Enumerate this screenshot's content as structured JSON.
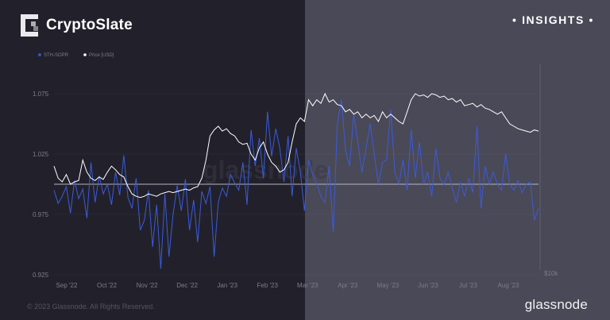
{
  "header": {
    "brand": "CryptoSlate",
    "badge": "INSIGHTS"
  },
  "footer": {
    "copyright": "© 2023 Glassnode. All Rights Reserved.",
    "brand": "glassnode"
  },
  "watermark": "glassnode",
  "colors": {
    "sopr": "#3b5bdb",
    "price": "#ffffff",
    "baseline": "#b5b5c0"
  },
  "chart_data": {
    "type": "line",
    "legend": [
      "STH-SOPR",
      "Price [USD]"
    ],
    "legend_position": "top-left",
    "y_ticks": [
      "1.075",
      "1.025",
      "0.975",
      "0.925"
    ],
    "y_tick_values": [
      1.075,
      1.025,
      0.975,
      0.925
    ],
    "ylim": [
      0.925,
      1.1
    ],
    "y_right_label": "$10k",
    "baseline": 1.0,
    "x_ticks": [
      "Sep '22",
      "Oct '22",
      "Nov '22",
      "Dec '22",
      "Jan '23",
      "Feb '23",
      "Mar '23",
      "Apr '23",
      "May '23",
      "Jun '23",
      "Jul '23",
      "Aug '23"
    ],
    "series": [
      {
        "name": "STH-SOPR",
        "values": [
          0.995,
          0.984,
          0.99,
          0.998,
          0.976,
          1.003,
          0.988,
          0.996,
          0.972,
          1.018,
          0.985,
          1.007,
          0.992,
          1.0,
          0.983,
          1.01,
          0.991,
          1.024,
          0.989,
          0.98,
          1.005,
          0.962,
          0.97,
          0.995,
          0.948,
          0.983,
          0.93,
          0.992,
          0.94,
          0.975,
          0.999,
          0.978,
          1.004,
          0.962,
          0.987,
          0.952,
          0.994,
          0.984,
          0.998,
          0.94,
          0.985,
          0.997,
          0.99,
          1.008,
          1.001,
          0.995,
          1.018,
          0.983,
          1.045,
          1.015,
          1.038,
          1.005,
          1.06,
          1.023,
          1.046,
          1.03,
          1.002,
          1.04,
          0.99,
          1.03,
          1.01,
          0.978,
          1.02,
          1.008,
          1.0,
          0.99,
          0.985,
          1.015,
          0.96,
          1.05,
          1.07,
          1.028,
          1.015,
          1.058,
          1.035,
          1.01,
          1.03,
          1.05,
          1.025,
          1.0,
          1.018,
          1.02,
          1.062,
          1.01,
          1.0,
          1.02,
          0.995,
          1.045,
          1.005,
          1.035,
          1.0,
          1.01,
          0.99,
          1.03,
          1.005,
          1.0,
          1.01,
          0.997,
          0.985,
          1.002,
          0.99,
          1.005,
          0.993,
          1.048,
          0.98,
          1.015,
          1.0,
          1.01,
          1.0,
          0.995,
          1.025,
          1.0,
          0.995,
          1.003,
          0.993,
          1.0,
          1.002,
          0.97,
          0.98
        ],
        "comment_free": true
      },
      {
        "name": "Price [USD]",
        "values": [
          1.015,
          1.005,
          1.002,
          1.008,
          1.0,
          1.002,
          1.003,
          1.02,
          1.01,
          1.005,
          1.003,
          1.006,
          1.004,
          1.01,
          1.015,
          1.012,
          1.008,
          1.006,
          0.998,
          0.992,
          0.99,
          0.989,
          0.99,
          0.992,
          0.991,
          0.99,
          0.992,
          0.993,
          0.994,
          0.993,
          0.994,
          0.995,
          0.996,
          0.995,
          0.997,
          0.998,
          1.005,
          1.02,
          1.04,
          1.045,
          1.048,
          1.044,
          1.046,
          1.042,
          1.04,
          1.035,
          1.033,
          1.034,
          1.025,
          1.02,
          1.03,
          1.035,
          1.025,
          1.018,
          1.015,
          1.01,
          1.012,
          1.018,
          1.035,
          1.05,
          1.055,
          1.052,
          1.07,
          1.065,
          1.07,
          1.067,
          1.075,
          1.068,
          1.07,
          1.066,
          1.065,
          1.06,
          1.062,
          1.058,
          1.06,
          1.055,
          1.058,
          1.055,
          1.057,
          1.052,
          1.06,
          1.055,
          1.058,
          1.055,
          1.052,
          1.05,
          1.06,
          1.07,
          1.075,
          1.073,
          1.074,
          1.072,
          1.075,
          1.074,
          1.072,
          1.073,
          1.07,
          1.071,
          1.068,
          1.07,
          1.065,
          1.066,
          1.067,
          1.064,
          1.066,
          1.063,
          1.062,
          1.06,
          1.058,
          1.06,
          1.055,
          1.05,
          1.048,
          1.046,
          1.045,
          1.044,
          1.043,
          1.045,
          1.044
        ]
      }
    ]
  }
}
